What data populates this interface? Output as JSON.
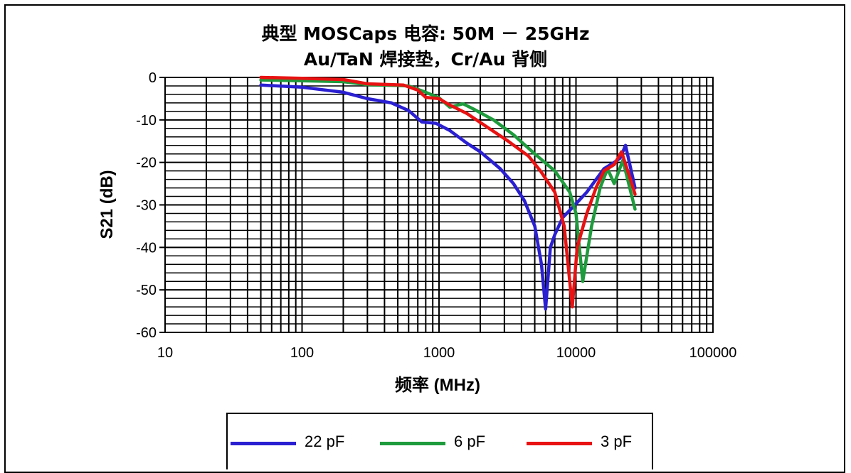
{
  "chart_data": {
    "type": "line",
    "title": "典型 MOSCaps 电容: 50M － 25GHz",
    "subtitle": "Au/TaN 焊接垫，Cr/Au 背侧",
    "xlabel": "频率 (MHz)",
    "ylabel": "S21 (dB)",
    "x_scale": "log",
    "xlim": [
      10,
      100000
    ],
    "ylim": [
      -60,
      0
    ],
    "x_ticks": [
      "10",
      "100",
      "1000",
      "10000",
      "100000"
    ],
    "y_ticks": [
      "0",
      "-10",
      "-20",
      "-30",
      "-40",
      "-50",
      "-60"
    ],
    "grid": true,
    "legend_position": "bottom",
    "series": [
      {
        "name": "22 pF",
        "color": "#2a1fd1",
        "points": [
          [
            50,
            -1.8
          ],
          [
            100,
            -2.3
          ],
          [
            200,
            -3.5
          ],
          [
            300,
            -5
          ],
          [
            450,
            -6
          ],
          [
            600,
            -7.8
          ],
          [
            750,
            -10.5
          ],
          [
            950,
            -10.8
          ],
          [
            1200,
            -12.5
          ],
          [
            1600,
            -15.5
          ],
          [
            2000,
            -17.5
          ],
          [
            2800,
            -21.5
          ],
          [
            3500,
            -25
          ],
          [
            4200,
            -29
          ],
          [
            5000,
            -35
          ],
          [
            5600,
            -44
          ],
          [
            6000,
            -54.5
          ],
          [
            6500,
            -40
          ],
          [
            7000,
            -37
          ],
          [
            8000,
            -33
          ],
          [
            9500,
            -30.5
          ],
          [
            12000,
            -27
          ],
          [
            16000,
            -21.5
          ],
          [
            19000,
            -20
          ],
          [
            21000,
            -19
          ],
          [
            23000,
            -16
          ],
          [
            27000,
            -26
          ]
        ]
      },
      {
        "name": "6 pF",
        "color": "#1e9b3c",
        "points": [
          [
            50,
            -0.6
          ],
          [
            100,
            -0.8
          ],
          [
            200,
            -1
          ],
          [
            300,
            -1.7
          ],
          [
            500,
            -1.9
          ],
          [
            600,
            -2
          ],
          [
            800,
            -3.5
          ],
          [
            1000,
            -4.8
          ],
          [
            1200,
            -7
          ],
          [
            1500,
            -6.2
          ],
          [
            1800,
            -7.5
          ],
          [
            2500,
            -10
          ],
          [
            3500,
            -13.5
          ],
          [
            5000,
            -18
          ],
          [
            7000,
            -22
          ],
          [
            9000,
            -27
          ],
          [
            10000,
            -32
          ],
          [
            11200,
            -48
          ],
          [
            13000,
            -35
          ],
          [
            15000,
            -26
          ],
          [
            17000,
            -21.5
          ],
          [
            19000,
            -25
          ],
          [
            22000,
            -19.5
          ],
          [
            27000,
            -31
          ]
        ]
      },
      {
        "name": "3 pF",
        "color": "#e81212",
        "points": [
          [
            50,
            0
          ],
          [
            100,
            -0.2
          ],
          [
            200,
            -0.5
          ],
          [
            300,
            -1.5
          ],
          [
            550,
            -1.8
          ],
          [
            700,
            -3
          ],
          [
            800,
            -4.7
          ],
          [
            1000,
            -5
          ],
          [
            1200,
            -6.5
          ],
          [
            1600,
            -8.5
          ],
          [
            2200,
            -11.5
          ],
          [
            3200,
            -15
          ],
          [
            4500,
            -18.5
          ],
          [
            5500,
            -22
          ],
          [
            7000,
            -27
          ],
          [
            8200,
            -35
          ],
          [
            9400,
            -54
          ],
          [
            10200,
            -40
          ],
          [
            12000,
            -32
          ],
          [
            14000,
            -26
          ],
          [
            16000,
            -22
          ],
          [
            19000,
            -20.5
          ],
          [
            21500,
            -17.5
          ],
          [
            25000,
            -24
          ],
          [
            27000,
            -27.5
          ]
        ]
      }
    ]
  }
}
